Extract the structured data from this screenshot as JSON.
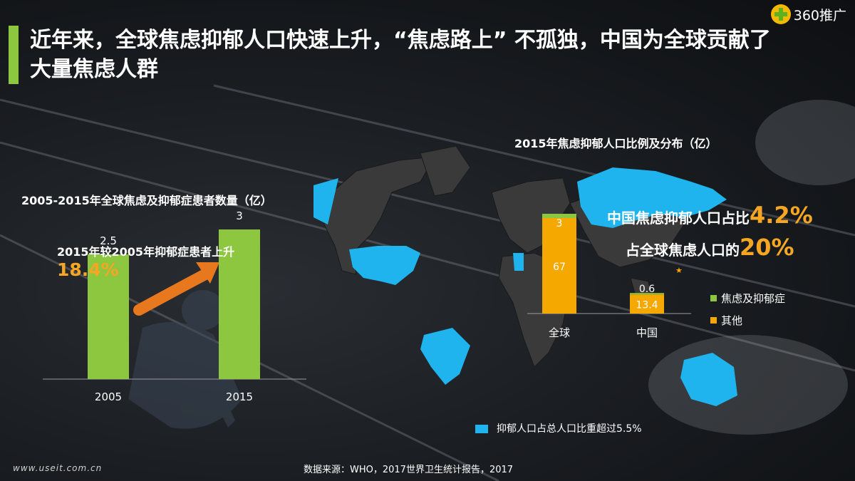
{
  "title": "近年来，全球焦虑抑郁人口快速上升，“焦虑路上” 不孤独，中国为全球贡献了大量焦虑人群",
  "logo_text": "360推广",
  "left_chart_title": "2005-2015年全球焦虑及抑郁症患者数量（亿）",
  "annotation_text": "2015年较2005年抑郁症患者上升",
  "annotation_pct": "18.4%",
  "right_chart_title": "2015年焦虑抑郁人口比例及分布（亿）",
  "china_share_text": "中国焦虑抑郁人口占比",
  "china_share_pct": "4.2%",
  "global_share_text": "占全球焦虑人口的",
  "global_share_pct": "20%",
  "map_legend": "抑郁人口占总人口比重超过5.5%",
  "source": "数据来源：WHO，2017世界卫生统计报告，2017",
  "watermark": "www.useit.com.cn",
  "colors": {
    "green": "#8dc63f",
    "orange": "#f5a800",
    "map_blue": "#1fb4ed",
    "arrow": "#e8781e"
  },
  "chart_data": [
    {
      "type": "bar",
      "title": "2005-2015年全球焦虑及抑郁症患者数量（亿）",
      "categories": [
        "2005",
        "2015"
      ],
      "values": [
        2.5,
        3
      ],
      "color": "#8dc63f"
    },
    {
      "type": "bar",
      "stacked": true,
      "title": "2015年焦虑抑郁人口比例及分布（亿）",
      "categories": [
        "全球",
        "中国"
      ],
      "series": [
        {
          "name": "焦虑及抑郁症",
          "values": [
            3,
            0.6
          ],
          "color": "#8dc63f"
        },
        {
          "name": "其他",
          "values": [
            67,
            13.4
          ],
          "color": "#f5a800"
        }
      ],
      "legend_position": "right"
    }
  ]
}
